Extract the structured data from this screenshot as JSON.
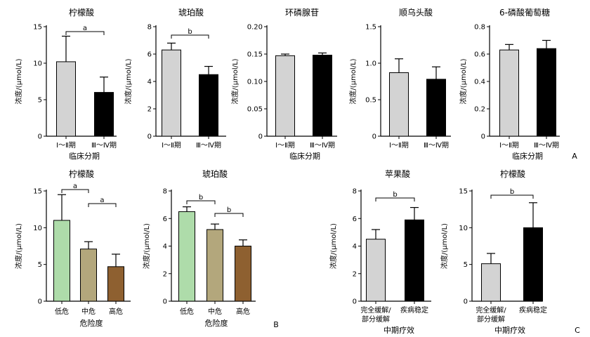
{
  "panel_labels": [
    "A",
    "B",
    "C"
  ],
  "chart_data": [
    {
      "type": "bar",
      "panel": "A",
      "title": "柠檬酸",
      "ylabel": "浓度/(μmol/L)",
      "xlabel": "临床分期",
      "categories": [
        "Ⅰ～Ⅱ期",
        "Ⅲ～Ⅳ期"
      ],
      "values": [
        10.2,
        6.0
      ],
      "errors": [
        3.5,
        2.1
      ],
      "colors": [
        "#d3d3d3",
        "#000000"
      ],
      "ylim": [
        0,
        15
      ],
      "yticks": [
        "0",
        "5",
        "10",
        "15"
      ],
      "ytick_values": [
        0,
        5,
        10,
        15
      ],
      "significance": [
        {
          "from": 0,
          "to": 1,
          "label": "a"
        }
      ]
    },
    {
      "type": "bar",
      "panel": "A",
      "title": "琥珀酸",
      "ylabel": "浓度/(μmol/L)",
      "xlabel": "",
      "categories": [
        "Ⅰ～Ⅱ期",
        "Ⅲ～Ⅳ期"
      ],
      "values": [
        6.3,
        4.5
      ],
      "errors": [
        0.5,
        0.6
      ],
      "colors": [
        "#d3d3d3",
        "#000000"
      ],
      "ylim": [
        0,
        8
      ],
      "yticks": [
        "0",
        "2",
        "4",
        "6",
        "8"
      ],
      "ytick_values": [
        0,
        2,
        4,
        6,
        8
      ],
      "significance": [
        {
          "from": 0,
          "to": 1,
          "label": "b"
        }
      ]
    },
    {
      "type": "bar",
      "panel": "A",
      "title": "环磷腺苷",
      "ylabel": "浓度/(μmol/L)",
      "xlabel": "临床分期",
      "categories": [
        "Ⅰ～Ⅱ期",
        "Ⅲ～Ⅳ期"
      ],
      "values": [
        0.147,
        0.148
      ],
      "errors": [
        0.003,
        0.004
      ],
      "colors": [
        "#d3d3d3",
        "#000000"
      ],
      "ylim": [
        0,
        0.2
      ],
      "yticks": [
        "0",
        "0.05",
        "0.10",
        "0.15",
        "0.20"
      ],
      "ytick_values": [
        0,
        0.05,
        0.1,
        0.15,
        0.2
      ],
      "significance": []
    },
    {
      "type": "bar",
      "panel": "A",
      "title": "顺乌头酸",
      "ylabel": "浓度/(μmol/L)",
      "xlabel": "",
      "categories": [
        "Ⅰ～Ⅱ期",
        "Ⅲ～Ⅳ期"
      ],
      "values": [
        0.87,
        0.78
      ],
      "errors": [
        0.19,
        0.17
      ],
      "colors": [
        "#d3d3d3",
        "#000000"
      ],
      "ylim": [
        0,
        1.5
      ],
      "yticks": [
        "0",
        "0.5",
        "1.0",
        "1.5"
      ],
      "ytick_values": [
        0,
        0.5,
        1.0,
        1.5
      ],
      "significance": []
    },
    {
      "type": "bar",
      "panel": "A",
      "title": "6-磷酸葡萄糖",
      "ylabel": "浓度/(μmol/L)",
      "xlabel": "临床分期",
      "categories": [
        "Ⅰ～Ⅱ期",
        "Ⅲ～Ⅳ期"
      ],
      "values": [
        0.63,
        0.64
      ],
      "errors": [
        0.04,
        0.06
      ],
      "colors": [
        "#d3d3d3",
        "#000000"
      ],
      "ylim": [
        0,
        0.8
      ],
      "yticks": [
        "0",
        "0.2",
        "0.4",
        "0.6",
        "0.8"
      ],
      "ytick_values": [
        0,
        0.2,
        0.4,
        0.6,
        0.8
      ],
      "significance": []
    },
    {
      "type": "bar",
      "panel": "B",
      "title": "柠檬酸",
      "ylabel": "浓度/(μmol/L)",
      "xlabel": "危险度",
      "categories": [
        "低危",
        "中危",
        "高危"
      ],
      "values": [
        11.0,
        7.1,
        4.7
      ],
      "errors": [
        3.5,
        1.0,
        1.7
      ],
      "colors": [
        "#aedcaa",
        "#b3a77c",
        "#8e6030"
      ],
      "ylim": [
        0,
        15
      ],
      "yticks": [
        "0",
        "5",
        "10",
        "15"
      ],
      "ytick_values": [
        0,
        5,
        10,
        15
      ],
      "significance": [
        {
          "from": 0,
          "to": 1,
          "label": "a"
        },
        {
          "from": 1,
          "to": 2,
          "label": "a"
        }
      ]
    },
    {
      "type": "bar",
      "panel": "B",
      "title": "琥珀酸",
      "ylabel": "浓度/(μmol/L)",
      "xlabel": "危险度",
      "categories": [
        "低危",
        "中危",
        "高危"
      ],
      "values": [
        6.5,
        5.2,
        4.0
      ],
      "errors": [
        0.35,
        0.4,
        0.45
      ],
      "colors": [
        "#aedcaa",
        "#b3a77c",
        "#8e6030"
      ],
      "ylim": [
        0,
        8
      ],
      "yticks": [
        "0",
        "2",
        "4",
        "6",
        "8"
      ],
      "ytick_values": [
        0,
        2,
        4,
        6,
        8
      ],
      "significance": [
        {
          "from": 0,
          "to": 1,
          "label": "b"
        },
        {
          "from": 1,
          "to": 2,
          "label": "b"
        }
      ]
    },
    {
      "type": "bar",
      "panel": "C",
      "title": "苹果酸",
      "ylabel": "浓度/(μmol/L)",
      "xlabel": "中期疗效",
      "categories": [
        "完全缓解/部分缓解",
        "疾病稳定"
      ],
      "values": [
        4.5,
        5.9
      ],
      "errors": [
        0.7,
        0.9
      ],
      "colors": [
        "#d3d3d3",
        "#000000"
      ],
      "ylim": [
        0,
        8
      ],
      "yticks": [
        "0",
        "2",
        "4",
        "6",
        "8"
      ],
      "ytick_values": [
        0,
        2,
        4,
        6,
        8
      ],
      "significance": [
        {
          "from": 0,
          "to": 1,
          "label": "b"
        }
      ]
    },
    {
      "type": "bar",
      "panel": "C",
      "title": "柠檬酸",
      "ylabel": "浓度/(μmol/L)",
      "xlabel": "中期疗效",
      "categories": [
        "完全缓解/部分缓解",
        "疾病稳定"
      ],
      "values": [
        5.1,
        10.0
      ],
      "errors": [
        1.4,
        3.4
      ],
      "colors": [
        "#d3d3d3",
        "#000000"
      ],
      "ylim": [
        0,
        15
      ],
      "yticks": [
        "0",
        "5",
        "10",
        "15"
      ],
      "ytick_values": [
        0,
        5,
        10,
        15
      ],
      "significance": [
        {
          "from": 0,
          "to": 1,
          "label": "b"
        }
      ]
    }
  ]
}
